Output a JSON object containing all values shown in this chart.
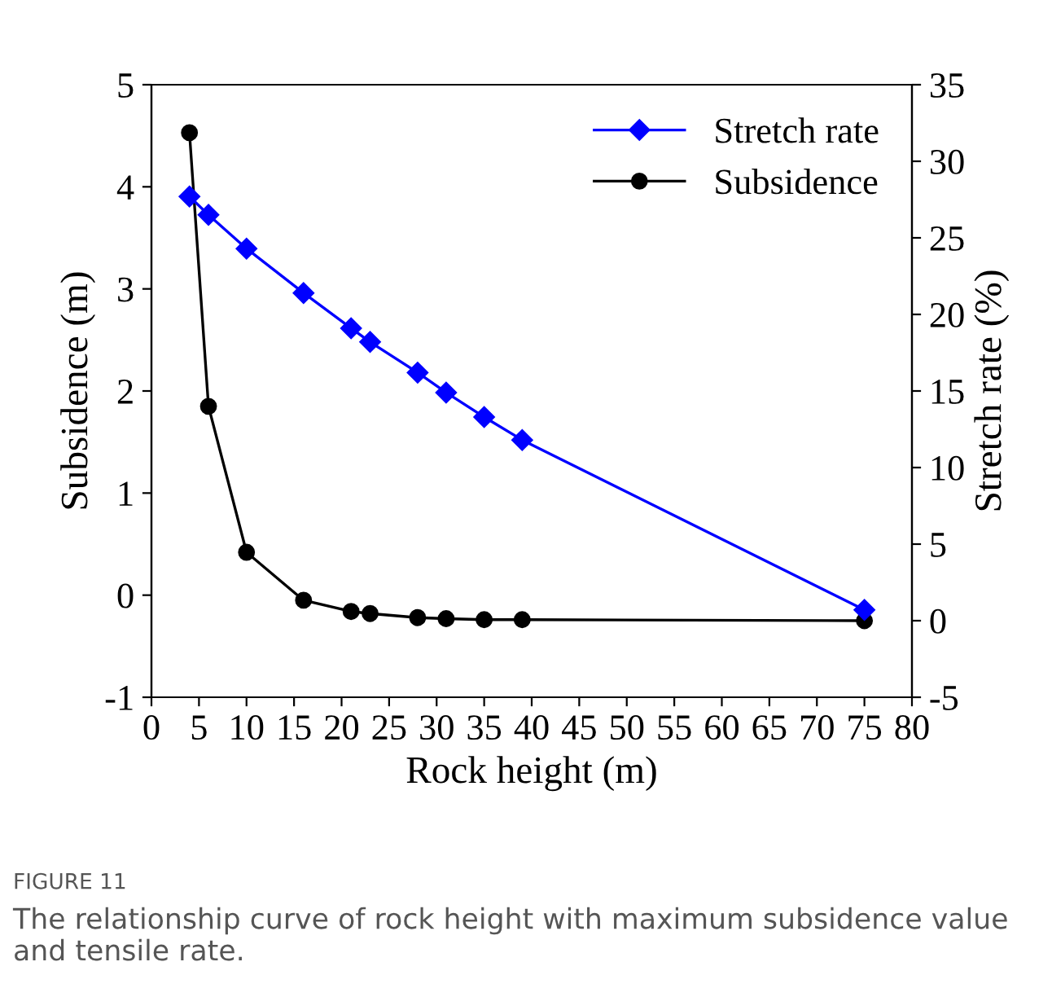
{
  "chart_data": {
    "type": "line",
    "xlabel": "Rock height (m)",
    "ylabel": "Subsidence (m)",
    "y2label": "Stretch rate (%)",
    "x": [
      4,
      6,
      10,
      16,
      21,
      23,
      28,
      31,
      35,
      39,
      75
    ],
    "series": [
      {
        "name": "Stretch rate",
        "color": "#0000ff",
        "marker": "diamond",
        "axis": "y2",
        "values": [
          27.7,
          26.5,
          24.3,
          21.4,
          19.1,
          18.2,
          16.2,
          14.9,
          13.3,
          11.8,
          0.7
        ]
      },
      {
        "name": "Subsidence",
        "color": "#000000",
        "marker": "circle",
        "values": [
          4.53,
          1.85,
          0.42,
          -0.05,
          -0.16,
          -0.18,
          -0.22,
          -0.23,
          -0.24,
          -0.24,
          -0.25
        ]
      }
    ],
    "xlim": [
      0,
      80
    ],
    "xticks": [
      0,
      5,
      10,
      15,
      20,
      25,
      30,
      35,
      40,
      45,
      50,
      55,
      60,
      65,
      70,
      75,
      80
    ],
    "ylim": [
      -1,
      5
    ],
    "yticks": [
      -1,
      0,
      1,
      2,
      3,
      4,
      5
    ],
    "y2lim": [
      -5,
      35
    ],
    "y2ticks": [
      -5,
      0,
      5,
      10,
      15,
      20,
      25,
      30,
      35
    ],
    "legend": "top right",
    "grid": false,
    "annotations": [
      "FIGURE 11",
      "The relationship curve of rock height with maximum subsidence value and tensile rate."
    ]
  }
}
